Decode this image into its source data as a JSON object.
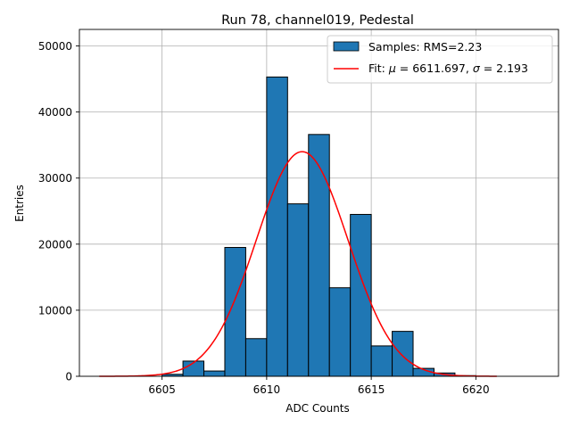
{
  "chart_data": {
    "type": "bar",
    "title": "Run 78, channel019, Pedestal",
    "xlabel": "ADC Counts",
    "ylabel": "Entries",
    "xlim": [
      6601.05,
      6623.95
    ],
    "ylim": [
      0,
      52500
    ],
    "xticks": [
      6605,
      6610,
      6615,
      6620
    ],
    "yticks": [
      0,
      10000,
      20000,
      30000,
      40000,
      50000
    ],
    "grid": true,
    "legend_position": "top-right",
    "bin_width": 1,
    "histogram": {
      "name": "Samples: RMS=2.23",
      "color": "#1f77b4",
      "edge_color": "#000000",
      "bins": [
        {
          "left": 6605.0,
          "value": 300
        },
        {
          "left": 6606.0,
          "value": 2300
        },
        {
          "left": 6607.0,
          "value": 800
        },
        {
          "left": 6608.0,
          "value": 19500
        },
        {
          "left": 6609.0,
          "value": 5700
        },
        {
          "left": 6610.0,
          "value": 45300
        },
        {
          "left": 6611.0,
          "value": 26100
        },
        {
          "left": 6612.0,
          "value": 36600
        },
        {
          "left": 6613.0,
          "value": 13400
        },
        {
          "left": 6614.0,
          "value": 24500
        },
        {
          "left": 6615.0,
          "value": 4600
        },
        {
          "left": 6616.0,
          "value": 6800
        },
        {
          "left": 6617.0,
          "value": 1200
        },
        {
          "left": 6618.0,
          "value": 500
        },
        {
          "left": 6619.0,
          "value": 100
        }
      ]
    },
    "fit": {
      "name": "Fit: μ = 6611.697, σ = 2.193",
      "label_prefix": "Fit: ",
      "mu_symbol": "μ",
      "mu_text": " = 6611.697, ",
      "sigma_symbol": "σ",
      "sigma_text": " = 2.193",
      "mu": 6611.697,
      "sigma": 2.193,
      "amplitude": 34000,
      "x_range": [
        6602,
        6621
      ],
      "color": "#ff0000"
    }
  }
}
